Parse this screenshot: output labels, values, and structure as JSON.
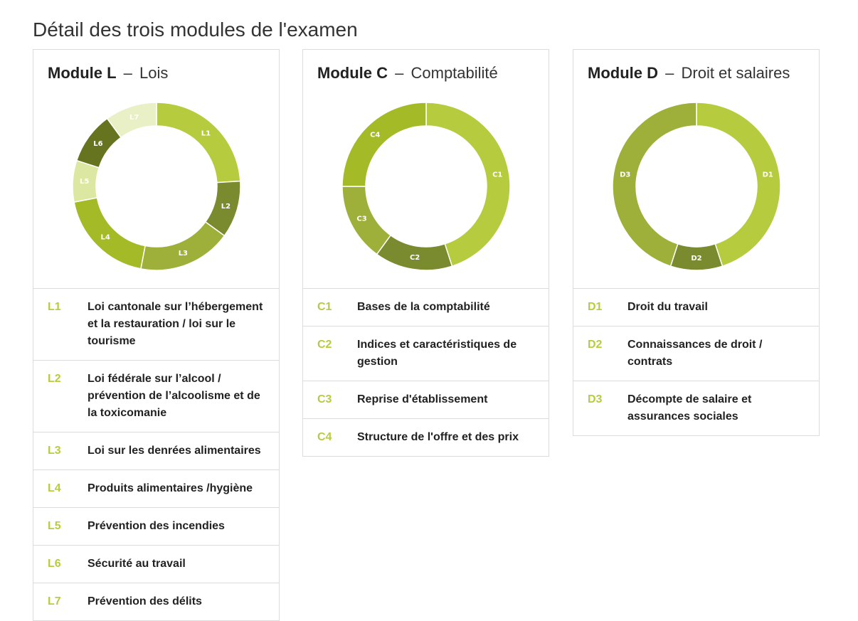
{
  "page": {
    "title": "Détail des trois modules de l'examen"
  },
  "modules": [
    {
      "name": "Module L",
      "dash": "–",
      "subtitle": "Lois",
      "items": [
        {
          "code": "L1",
          "label": "Loi cantonale sur l’hébergement et la restauration / loi sur le tourisme",
          "share": 24,
          "color": "#b6cc3e",
          "text": "#ffffff"
        },
        {
          "code": "L2",
          "label": "Loi fédérale sur l’alcool / prévention de l’alcoolisme et de la toxicomanie",
          "share": 11,
          "color": "#7a8a2e",
          "text": "#ffffff"
        },
        {
          "code": "L3",
          "label": "Loi sur les denrées alimentaires",
          "share": 18,
          "color": "#9fb03a",
          "text": "#ffffff"
        },
        {
          "code": "L4",
          "label": "Produits alimentaires /hygiène",
          "share": 19,
          "color": "#a4ba26",
          "text": "#ffffff"
        },
        {
          "code": "L5",
          "label": "Prévention des incendies",
          "share": 8,
          "color": "#dce7a2",
          "text": "#ffffff"
        },
        {
          "code": "L6",
          "label": "Sécurité au travail",
          "share": 10,
          "color": "#66741f",
          "text": "#ffffff"
        },
        {
          "code": "L7",
          "label": "Prévention des délits",
          "share": 10,
          "color": "#e9f0c5",
          "text": "#ffffff"
        }
      ]
    },
    {
      "name": "Module C",
      "dash": "–",
      "subtitle": "Comptabilité",
      "items": [
        {
          "code": "C1",
          "label": "Bases de la comptabilité",
          "share": 45,
          "color": "#b6cc3e",
          "text": "#ffffff"
        },
        {
          "code": "C2",
          "label": "Indices et caractéristiques de gestion",
          "share": 15,
          "color": "#7a8a2e",
          "text": "#ffffff"
        },
        {
          "code": "C3",
          "label": "Reprise d'établissement",
          "share": 15,
          "color": "#9fb03a",
          "text": "#ffffff"
        },
        {
          "code": "C4",
          "label": "Structure de l'offre et des prix",
          "share": 25,
          "color": "#a4ba26",
          "text": "#ffffff"
        }
      ]
    },
    {
      "name": "Module D",
      "dash": "–",
      "subtitle": "Droit et salaires",
      "items": [
        {
          "code": "D1",
          "label": "Droit du travail",
          "share": 45,
          "color": "#b6cc3e",
          "text": "#ffffff"
        },
        {
          "code": "D2",
          "label": "Connaissances de droit / contrats",
          "share": 10,
          "color": "#7a8a2e",
          "text": "#ffffff"
        },
        {
          "code": "D3",
          "label": "Décompte de salaire et assurances sociales",
          "share": 45,
          "color": "#9fb03a",
          "text": "#ffffff"
        }
      ]
    }
  ]
}
